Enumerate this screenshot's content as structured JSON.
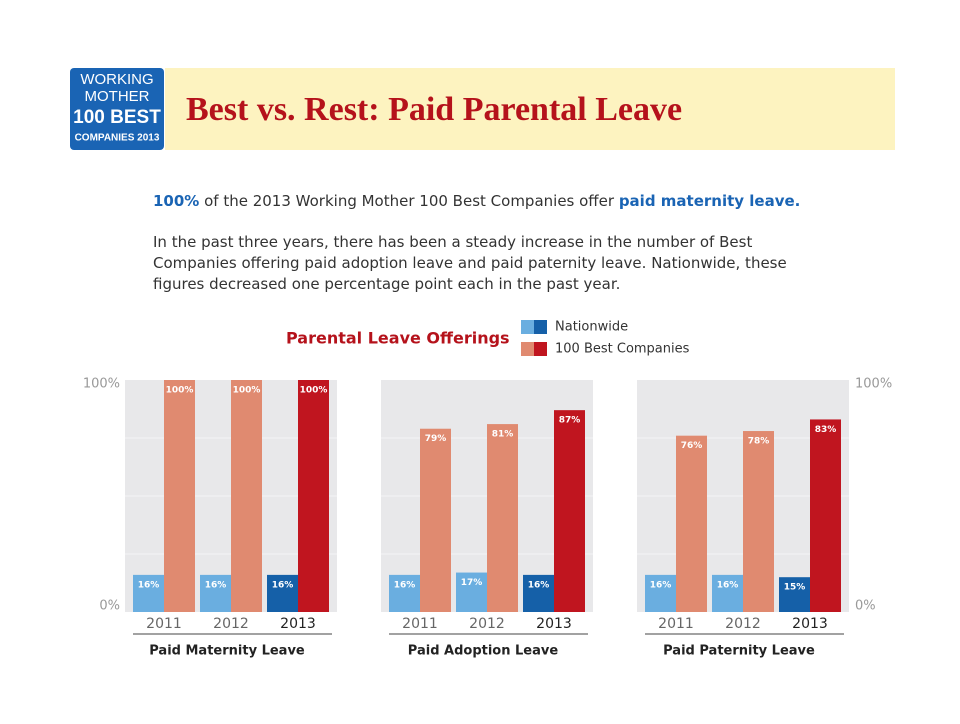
{
  "header": {
    "logo": [
      "WORKING",
      "MOTHER",
      "100 BEST",
      "COMPANIES 2013"
    ],
    "title": "Best vs. Rest: Paid Parental Leave"
  },
  "intro": {
    "lead": [
      "100%",
      " of the 2013 Working Mother 100 Best Companies offer ",
      "paid maternity leave."
    ],
    "body": "In the past three years, there has been a steady increase in the number of Best Companies offering paid adoption leave and paid paternity leave. Nationwide, these figures decreased one percentage point each in the past year."
  },
  "legend_title": "Parental Leave Offerings",
  "chart_data": [
    {
      "type": "bar",
      "title": "Paid Maternity Leave",
      "categories": [
        "2011",
        "2012",
        "2013"
      ],
      "ylim": [
        0,
        100
      ],
      "yticks": [
        {
          "value": 0,
          "label": "0%"
        },
        {
          "value": 100,
          "label": "100%"
        }
      ],
      "tick_side": "left",
      "series": [
        {
          "name": "Nationwide",
          "colors": [
            "#6aaee0",
            "#6aaee0",
            "#1560a8"
          ],
          "values": [
            16,
            16,
            16
          ],
          "value_labels": [
            "16%",
            "16%",
            "16%"
          ]
        },
        {
          "name": "100 Best Companies",
          "colors": [
            "#e08a70",
            "#e08a70",
            "#c0151f"
          ],
          "values": [
            100,
            100,
            100
          ],
          "value_labels": [
            "100%",
            "100%",
            "100%"
          ]
        }
      ]
    },
    {
      "type": "bar",
      "title": "Paid Adoption Leave",
      "categories": [
        "2011",
        "2012",
        "2013"
      ],
      "ylim": [
        0,
        100
      ],
      "series": [
        {
          "name": "Nationwide",
          "colors": [
            "#6aaee0",
            "#6aaee0",
            "#1560a8"
          ],
          "values": [
            16,
            17,
            16
          ],
          "value_labels": [
            "16%",
            "17%",
            "16%"
          ]
        },
        {
          "name": "100 Best Companies",
          "colors": [
            "#e08a70",
            "#e08a70",
            "#c0151f"
          ],
          "values": [
            79,
            81,
            87
          ],
          "value_labels": [
            "79%",
            "81%",
            "87%"
          ]
        }
      ]
    },
    {
      "type": "bar",
      "title": "Paid Paternity Leave",
      "categories": [
        "2011",
        "2012",
        "2013"
      ],
      "ylim": [
        0,
        100
      ],
      "yticks": [
        {
          "value": 0,
          "label": "0%"
        },
        {
          "value": 100,
          "label": "100%"
        }
      ],
      "tick_side": "right",
      "series": [
        {
          "name": "Nationwide",
          "colors": [
            "#6aaee0",
            "#6aaee0",
            "#1560a8"
          ],
          "values": [
            16,
            16,
            15
          ],
          "value_labels": [
            "16%",
            "16%",
            "15%"
          ]
        },
        {
          "name": "100 Best Companies",
          "colors": [
            "#e08a70",
            "#e08a70",
            "#c0151f"
          ],
          "values": [
            76,
            78,
            83
          ],
          "value_labels": [
            "76%",
            "78%",
            "83%"
          ]
        }
      ]
    }
  ]
}
